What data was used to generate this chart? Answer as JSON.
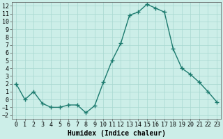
{
  "x": [
    0,
    1,
    2,
    3,
    4,
    5,
    6,
    7,
    8,
    9,
    10,
    11,
    12,
    13,
    14,
    15,
    16,
    17,
    18,
    19,
    20,
    21,
    22,
    23
  ],
  "y": [
    2,
    0,
    1,
    -0.5,
    -1,
    -1,
    -0.7,
    -0.7,
    -1.7,
    -0.8,
    2.2,
    5,
    7.2,
    10.8,
    11.2,
    12.2,
    11.7,
    11.2,
    6.5,
    4,
    3.2,
    2.2,
    1,
    -0.3
  ],
  "line_color": "#1c7a6e",
  "marker": "+",
  "marker_size": 4,
  "marker_lw": 1.0,
  "line_width": 1.0,
  "bg_color": "#cceee8",
  "grid_color": "#a8d8d0",
  "xlabel": "Humidex (Indice chaleur)",
  "xlabel_fontsize": 7,
  "tick_fontsize": 6,
  "ylim": [
    -2.5,
    12.5
  ],
  "xlim": [
    -0.5,
    23.5
  ],
  "yticks": [
    -2,
    -1,
    0,
    1,
    2,
    3,
    4,
    5,
    6,
    7,
    8,
    9,
    10,
    11,
    12
  ],
  "xticks": [
    0,
    1,
    2,
    3,
    4,
    5,
    6,
    7,
    8,
    9,
    10,
    11,
    12,
    13,
    14,
    15,
    16,
    17,
    18,
    19,
    20,
    21,
    22,
    23
  ]
}
